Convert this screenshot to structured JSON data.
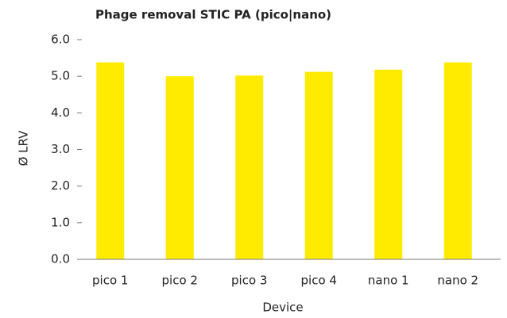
{
  "chart_data": {
    "type": "bar",
    "title": "Phage removal STIC PA (pico|nano)",
    "x_label": "Device",
    "y_label": "Ø LRV",
    "categories": [
      "pico 1",
      "pico 2",
      "pico 3",
      "pico 4",
      "nano 1",
      "nano 2"
    ],
    "values": [
      5.38,
      5.0,
      5.02,
      5.12,
      5.18,
      5.38
    ],
    "color": "#ffeb00",
    "ylim": [
      0,
      6
    ],
    "yticks": [
      {
        "value": 0,
        "label": "0.0"
      },
      {
        "value": 1,
        "label": "1.0"
      },
      {
        "value": 2,
        "label": "2.0"
      },
      {
        "value": 3,
        "label": "3.0"
      },
      {
        "value": 4,
        "label": "4.0"
      },
      {
        "value": 5,
        "label": "5.0"
      },
      {
        "value": 6,
        "label": "6.0"
      }
    ],
    "grid": false
  }
}
